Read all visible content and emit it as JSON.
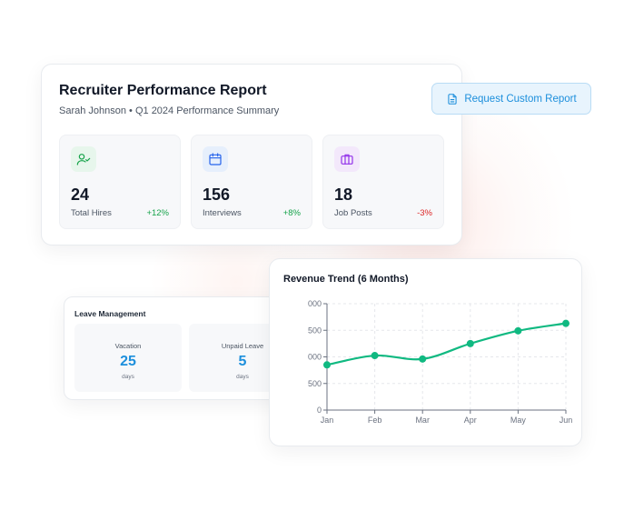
{
  "report": {
    "title": "Recruiter Performance Report",
    "subtitle": "Sarah Johnson • Q1 2024 Performance Summary",
    "stats": [
      {
        "value": "24",
        "label": "Total Hires",
        "delta": "+12%",
        "icon": "user-check-icon",
        "color": "#16a34a",
        "bg": "#e7f6ec",
        "trend": "up"
      },
      {
        "value": "156",
        "label": "Interviews",
        "delta": "+8%",
        "icon": "calendar-icon",
        "color": "#2563eb",
        "bg": "#e6effc",
        "trend": "up"
      },
      {
        "value": "18",
        "label": "Job Posts",
        "delta": "-3%",
        "icon": "briefcase-icon",
        "color": "#9333ea",
        "bg": "#f3e8fb",
        "trend": "down"
      }
    ]
  },
  "request_button": {
    "label": "Request Custom Report",
    "icon": "document-icon"
  },
  "leave": {
    "title": "Leave Management",
    "items": [
      {
        "label": "Vacation",
        "value": "25",
        "unit": "days"
      },
      {
        "label": "Unpaid Leave",
        "value": "5",
        "unit": "days"
      }
    ]
  },
  "revenue": {
    "title": "Revenue Trend (6 Months)"
  },
  "chart_data": {
    "type": "line",
    "title": "Revenue Trend (6 Months)",
    "categories": [
      "Jan",
      "Feb",
      "Mar",
      "Apr",
      "May",
      "Jun"
    ],
    "x_tick_labels": [
      "Jan",
      "Feb",
      "Mar",
      "Apr",
      "May",
      "Jun"
    ],
    "y_tick_labels": [
      "0",
      "500",
      "000",
      "500",
      "000"
    ],
    "values": [
      850,
      1025,
      960,
      1250,
      1490,
      1630
    ],
    "ylim": [
      0,
      2000
    ],
    "grid": true,
    "color": "#10b981"
  }
}
